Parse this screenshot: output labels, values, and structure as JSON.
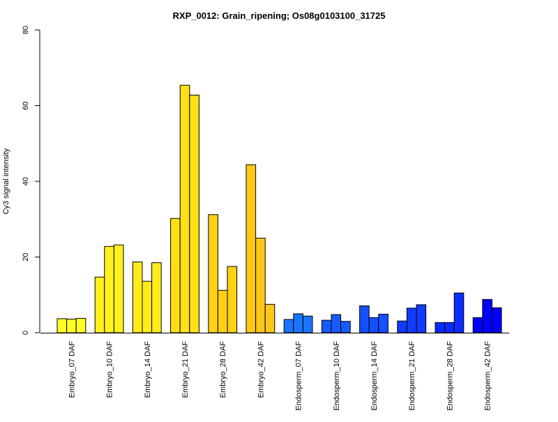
{
  "chart_data": {
    "type": "bar",
    "title": "RXP_0012: Grain_ripening; Os08g0103100_31725",
    "xlabel": "",
    "ylabel": "Cy3 signal intensity",
    "ylim": [
      0,
      80
    ],
    "yticks": [
      0,
      20,
      40,
      60,
      80
    ],
    "grid": false,
    "categories": [
      "Embryo_07 DAF",
      "Embryo_10 DAF",
      "Embryo_14 DAF",
      "Embryo_21 DAF",
      "Embryo_28 DAF",
      "Embryo_42 DAF",
      "Endosperm_07 DAF",
      "Endosperm_10 DAF",
      "Endosperm_14 DAF",
      "Endosperm_21 DAF",
      "Endosperm_28 DAF",
      "Endosperm_42 DAF"
    ],
    "replicates": [
      [
        3.7,
        3.6,
        3.8
      ],
      [
        14.7,
        22.8,
        23.2
      ],
      [
        18.7,
        13.6,
        18.5
      ],
      [
        30.2,
        65.4,
        62.8
      ],
      [
        31.2,
        11.2,
        17.5
      ],
      [
        44.4,
        25.0,
        7.5
      ],
      [
        3.5,
        5.0,
        4.4
      ],
      [
        3.3,
        4.8,
        3.0
      ],
      [
        7.1,
        4.0,
        4.9
      ],
      [
        3.1,
        6.5,
        7.4
      ],
      [
        2.7,
        2.7,
        10.5
      ],
      [
        4.0,
        8.8,
        6.6
      ]
    ],
    "group_colors": [
      "#FFFF26",
      "#FFF11D",
      "#FFEB1A",
      "#FFE015",
      "#FFD014",
      "#FFC71A",
      "#1A75FF",
      "#175CFF",
      "#1450FF",
      "#0F3CFF",
      "#0A2DFF",
      "#0000FF"
    ]
  }
}
